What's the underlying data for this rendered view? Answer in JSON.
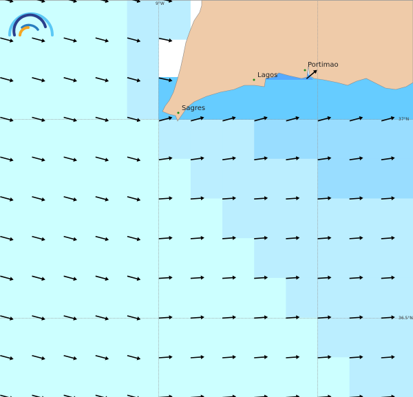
{
  "colors": {
    "levels": [
      "#ccffff",
      "#bbeeff",
      "#99ddff",
      "#66ccff",
      "#55aaff"
    ],
    "land": "#efcba9",
    "coast": "#8a8a8a",
    "nodata": "#ffffff",
    "arrow": "#000000",
    "town": "#1a8a1a",
    "logo": [
      "#5bc8f5",
      "#2b3f8c",
      "#2a7fc0",
      "#f5a623"
    ]
  },
  "level_grid": [
    [
      0,
      0,
      0,
      0,
      1,
      1,
      -1,
      -1,
      -1,
      -1,
      -1,
      -1,
      -1
    ],
    [
      0,
      0,
      0,
      0,
      1,
      -1,
      -1,
      -1,
      -1,
      -1,
      -1,
      -1,
      -1
    ],
    [
      0,
      0,
      0,
      0,
      1,
      -1,
      -1,
      -1,
      -1,
      -1,
      -1,
      -1,
      -1
    ],
    [
      0,
      0,
      0,
      0,
      0,
      1,
      1,
      1,
      2,
      2,
      2,
      2,
      2
    ],
    [
      0,
      0,
      0,
      0,
      0,
      0,
      1,
      1,
      1,
      1,
      2,
      2,
      2
    ],
    [
      0,
      0,
      0,
      0,
      0,
      0,
      0,
      1,
      1,
      1,
      1,
      1,
      1
    ],
    [
      0,
      0,
      0,
      0,
      0,
      0,
      0,
      0,
      1,
      1,
      1,
      1,
      1
    ],
    [
      0,
      0,
      0,
      0,
      0,
      0,
      0,
      0,
      0,
      1,
      1,
      1,
      1
    ],
    [
      0,
      0,
      0,
      0,
      0,
      0,
      0,
      0,
      0,
      0,
      1,
      1,
      1
    ],
    [
      0,
      0,
      0,
      0,
      0,
      0,
      0,
      0,
      0,
      0,
      0,
      1,
      1
    ]
  ],
  "graticule": {
    "lon_label": "9°W",
    "lat_labels": [
      "37°N",
      "36.5°N"
    ]
  },
  "places": [
    {
      "name": "Sagres"
    },
    {
      "name": "Lagos"
    },
    {
      "name": "Portimao"
    }
  ]
}
